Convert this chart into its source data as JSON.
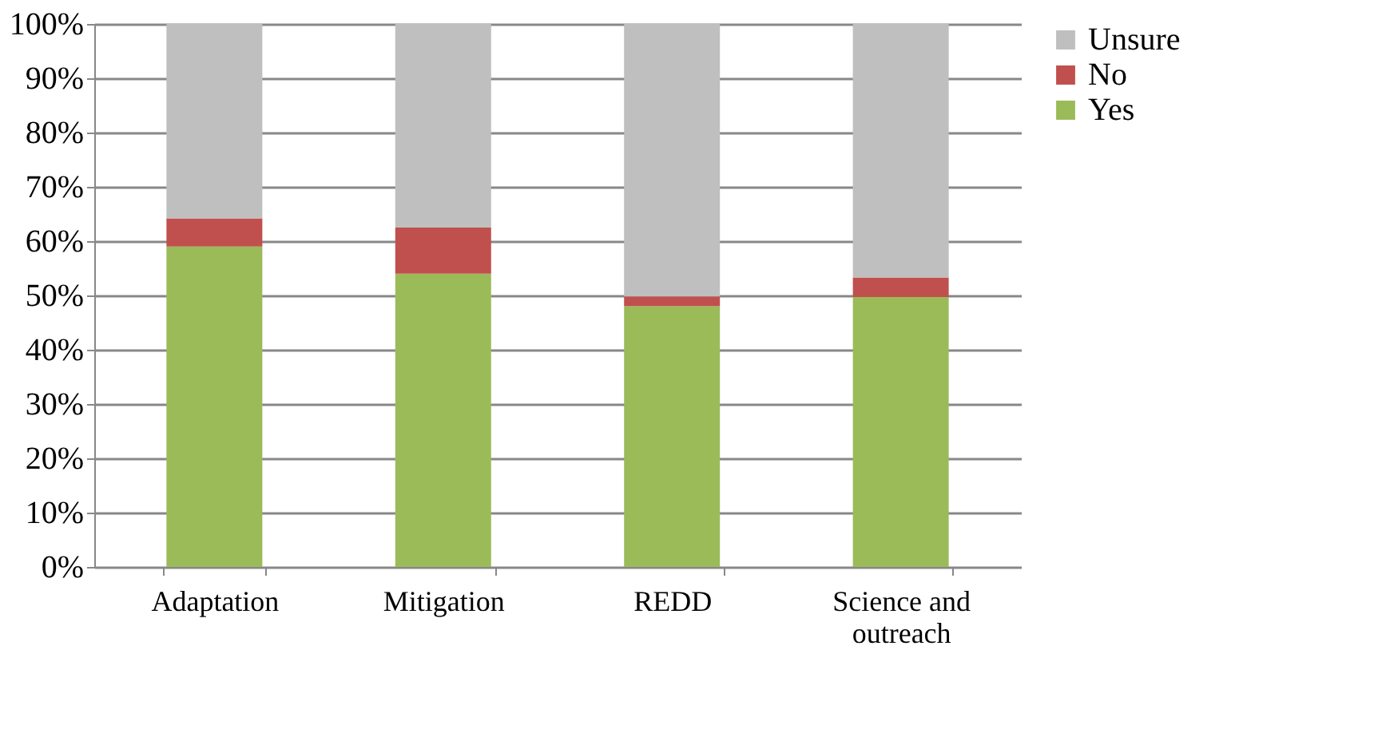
{
  "chart_data": {
    "type": "bar",
    "stacked": true,
    "categories": [
      "Adaptation",
      "Mitigation",
      "REDD",
      "Science and outreach"
    ],
    "series": [
      {
        "name": "Yes",
        "color": "#9bbb59",
        "values": [
          59,
          54,
          48,
          49.7
        ]
      },
      {
        "name": "No",
        "color": "#c0504d",
        "values": [
          5.2,
          8.5,
          1.8,
          3.6
        ]
      },
      {
        "name": "Unsure",
        "color": "#bfbfbf",
        "values": [
          35.8,
          37.5,
          50.2,
          46.7
        ]
      }
    ],
    "ylim": [
      0,
      100
    ],
    "yticks": [
      {
        "value": 0,
        "label": "0%"
      },
      {
        "value": 10,
        "label": "10%"
      },
      {
        "value": 20,
        "label": "20%"
      },
      {
        "value": 30,
        "label": "30%"
      },
      {
        "value": 40,
        "label": "40%"
      },
      {
        "value": 50,
        "label": "50%"
      },
      {
        "value": 60,
        "label": "60%"
      },
      {
        "value": 70,
        "label": "70%"
      },
      {
        "value": 80,
        "label": "80%"
      },
      {
        "value": 90,
        "label": "90%"
      },
      {
        "value": 100,
        "label": "100%"
      }
    ],
    "grid": "y",
    "legend": "right"
  }
}
